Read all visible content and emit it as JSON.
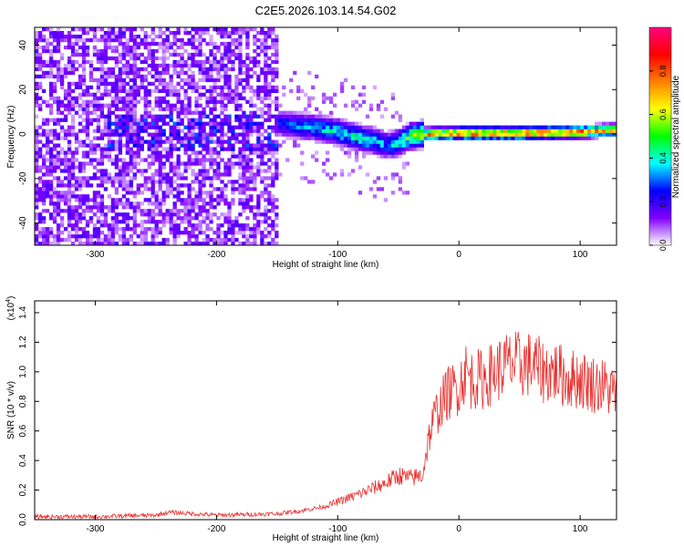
{
  "title": "C2E5.2026.103.14.54.G02",
  "chart_data": [
    {
      "type": "heatmap",
      "xlabel": "Height of straight line (km)",
      "ylabel": "Frequency (Hz)",
      "xlim": [
        -350,
        130
      ],
      "ylim": [
        -50,
        48
      ],
      "xticks": [
        -300,
        -200,
        -100,
        0,
        100
      ],
      "yticks": [
        -40,
        -20,
        0,
        20,
        40
      ],
      "noise_region_x": [
        -350,
        -150
      ],
      "signal_track": {
        "x": [
          -150,
          -120,
          -100,
          -80,
          -70,
          -60,
          -50,
          -40,
          -30,
          0,
          50,
          100,
          130
        ],
        "freq_hz": [
          5,
          3,
          1,
          -2,
          -3,
          -5,
          -4,
          -1,
          0,
          0.5,
          0.5,
          1,
          2
        ],
        "peak_amplitude": [
          0.3,
          0.4,
          0.45,
          0.5,
          0.45,
          0.35,
          0.5,
          0.6,
          0.8,
          0.9,
          0.92,
          0.9,
          0.7
        ]
      },
      "colorbar": {
        "label": "Normalized spectral amplitude",
        "range": [
          0,
          1
        ],
        "ticks": [
          0.0,
          0.2,
          0.4,
          0.6,
          0.8
        ],
        "tick_labels": [
          "0.0",
          "0.2",
          "0.4",
          "0.6",
          "0.8"
        ],
        "colors": [
          "#ffffff",
          "#8000ff",
          "#0000ff",
          "#00ffff",
          "#00ff00",
          "#ffff00",
          "#ff8000",
          "#ff0000",
          "#ff0080"
        ]
      }
    },
    {
      "type": "line",
      "xlabel": "Height of straight line (km)",
      "ylabel": "SNR (10 * v/v)",
      "y_multiplier": "(x10",
      "y_exponent": "4",
      "xlim": [
        -350,
        130
      ],
      "ylim": [
        0,
        1.48
      ],
      "xticks": [
        -300,
        -200,
        -100,
        0,
        100
      ],
      "yticks": [
        0.0,
        0.2,
        0.4,
        0.6,
        0.8,
        1.0,
        1.2,
        1.4
      ],
      "ytick_labels": [
        "0.0",
        "0.2",
        "0.4",
        "0.6",
        "0.8",
        "1.0",
        "1.2",
        "1.4"
      ],
      "color": "#e8302e",
      "series": [
        {
          "name": "SNR",
          "x": [
            -350,
            -300,
            -250,
            -240,
            -200,
            -150,
            -130,
            -110,
            -100,
            -80,
            -60,
            -50,
            -40,
            -30,
            -25,
            -20,
            -10,
            0,
            5,
            10,
            20,
            30,
            40,
            50,
            60,
            70,
            80,
            90,
            100,
            110,
            120,
            130
          ],
          "y": [
            0.02,
            0.02,
            0.03,
            0.05,
            0.03,
            0.04,
            0.06,
            0.09,
            0.12,
            0.18,
            0.25,
            0.3,
            0.28,
            0.3,
            0.55,
            0.7,
            0.85,
            0.9,
            1.0,
            0.95,
            0.95,
            1.0,
            1.05,
            1.05,
            1.05,
            1.0,
            1.0,
            0.95,
            0.95,
            0.92,
            0.9,
            0.85
          ]
        }
      ]
    }
  ]
}
